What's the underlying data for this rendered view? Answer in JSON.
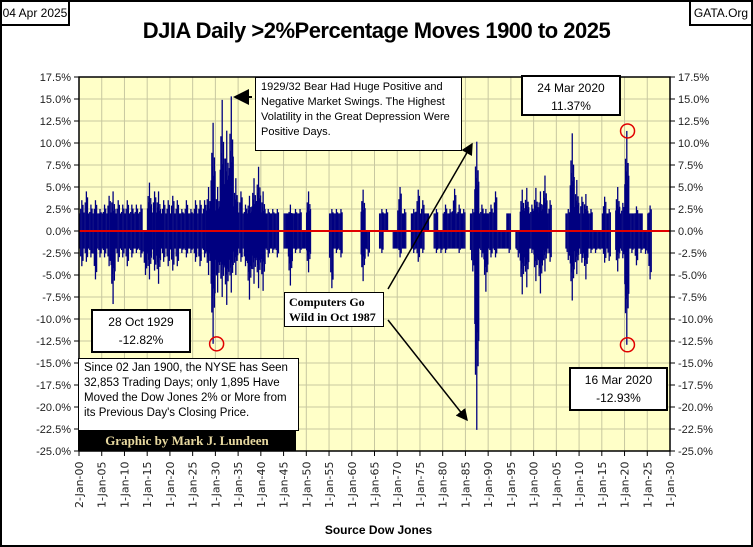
{
  "header": {
    "date": "04 Apr 2025",
    "site": "GATA.Org",
    "title": "DJIA Daily >2%Percentage Moves 1900 to 2025"
  },
  "footer": {
    "source": "Source Dow Jones",
    "credit": "Graphic by Mark J. Lundeen"
  },
  "annotations": {
    "bear_1929": "1929/32 Bear Had Huge Positive and Negative Market Swings.  The Highest Volatility in the Great Depression Were Positive Days.",
    "oct1929_date": "28 Oct 1929",
    "oct1929_value": "-12.82%",
    "computers": "Computers Go Wild in Oct 1987",
    "mar2020_up_date": "24 Mar 2020",
    "mar2020_up_value": "11.37%",
    "mar2020_down_date": "16 Mar 2020",
    "mar2020_down_value": "-12.93%",
    "summary": "Since 02 Jan 1900, the NYSE has Seen 32,853 Trading Days; only 1,895 Have Moved the Dow Jones 2% or More from its Previous Day's Closing Price."
  },
  "chart_data": {
    "type": "bar",
    "title": "DJIA Daily >2%Percentage Moves 1900 to 2025",
    "xlabel": "Source Dow Jones",
    "ylabel": "",
    "xlim": [
      1900,
      2030
    ],
    "ylim": [
      -25,
      17.5
    ],
    "grid": true,
    "y_ticks": [
      "17.5%",
      "15.0%",
      "12.5%",
      "10.0%",
      "7.5%",
      "5.0%",
      "2.5%",
      "0.0%",
      "-2.5%",
      "-5.0%",
      "-7.5%",
      "-10.0%",
      "-12.5%",
      "-15.0%",
      "-17.5%",
      "-20.0%",
      "-22.5%",
      "-25.0%"
    ],
    "x_ticks": [
      "2-Jan-00",
      "1-Jan-05",
      "1-Jan-10",
      "1-Jan-15",
      "1-Jan-20",
      "1-Jan-25",
      "1-Jan-30",
      "1-Jan-35",
      "1-Jan-40",
      "1-Jan-45",
      "1-Jan-50",
      "1-Jan-55",
      "1-Jan-60",
      "1-Jan-65",
      "1-Jan-70",
      "1-Jan-75",
      "1-Jan-80",
      "1-Jan-85",
      "1-Jan-90",
      "1-Jan-95",
      "1-Jan-00",
      "1-Jan-05",
      "1-Jan-10",
      "1-Jan-15",
      "1-Jan-20",
      "1-Jan-25",
      "1-Jan-30"
    ],
    "start_year": 1900,
    "yearly_max_gain_pct": [
      3.5,
      4.5,
      3,
      3.5,
      2.5,
      3,
      4,
      4.5,
      3.5,
      3,
      3.5,
      3,
      3,
      3,
      0,
      5.5,
      4.5,
      4.5,
      3.5,
      3.5,
      4,
      3.5,
      2.5,
      3.5,
      2.5,
      3.5,
      3.5,
      3.5,
      5,
      12.3,
      5,
      14.9,
      11.4,
      15.3,
      6,
      4.5,
      3,
      4,
      6,
      7.3,
      4.5,
      2.5,
      2.5,
      2.5,
      0,
      2,
      3,
      2.5,
      2.5,
      0,
      4.5,
      0,
      0,
      0,
      0,
      2.5,
      2.5,
      2.5,
      0,
      0,
      0,
      0,
      4.7,
      0,
      0,
      0,
      2.5,
      2.5,
      0,
      0,
      5,
      2.5,
      0,
      2.5,
      4.7,
      3.5,
      2,
      0,
      2.5,
      0,
      3,
      2.5,
      4.8,
      3,
      2.5,
      0,
      2.5,
      10.15,
      3,
      2.5,
      3,
      4.5,
      0,
      0,
      2,
      0,
      0,
      4.7,
      4.9,
      3,
      4.9,
      4.5,
      6.3,
      3.5,
      0,
      0,
      0,
      2.5,
      11.1,
      5.8,
      3.9,
      4.2,
      2.5,
      0,
      0,
      3.9,
      2.5,
      0,
      5,
      3.2,
      11.37,
      2,
      2.8,
      2,
      0,
      2.9
    ],
    "yearly_max_loss_pct": [
      -4,
      -3.5,
      -3,
      -5.5,
      -3,
      -3,
      -4,
      -8.3,
      -3.5,
      -3,
      -4,
      -3,
      -2.5,
      -3,
      -5,
      -5.5,
      -4.5,
      -6,
      -3.5,
      -4,
      -4.5,
      -4,
      -2.5,
      -3,
      -2.5,
      -3.5,
      -4,
      -3,
      -5,
      -12.82,
      -7,
      -7.5,
      -8.4,
      -7,
      -5,
      -3.5,
      -4,
      -7.8,
      -6,
      -6.5,
      -6.8,
      -3,
      -2.5,
      -3,
      0,
      -2,
      -6.2,
      -2.5,
      -2.5,
      -2,
      -4.7,
      0,
      0,
      0,
      0,
      -6.5,
      -2.5,
      -3,
      0,
      0,
      0,
      0,
      -5.7,
      -2.9,
      0,
      0,
      -2.5,
      0,
      0,
      -2,
      -3,
      -2,
      0,
      -2.5,
      -3.5,
      -2.5,
      0,
      0,
      -2.5,
      -2.5,
      -2.5,
      -2,
      -2,
      -2.5,
      -2,
      0,
      -4.6,
      -22.6,
      -3,
      -6.9,
      -3,
      -3,
      -2,
      -2,
      -2.5,
      0,
      -3,
      -7.2,
      -6.4,
      -2.5,
      -5.7,
      -7.1,
      -4.6,
      -3.5,
      0,
      0,
      0,
      -3.3,
      -7.9,
      -4.9,
      -3.6,
      -5.5,
      -2.5,
      -2.5,
      -2.1,
      -3.6,
      -3.4,
      0,
      -4.6,
      -3.1,
      -12.93,
      -2.5,
      -3.9,
      -2.5,
      -2.6,
      -5.5
    ],
    "colors": {
      "bars": "#000080",
      "zero_line": "#e00000",
      "plot_bg": "#ffffc8",
      "grid": "#c8c8a0",
      "highlight_circle": "#e00000"
    }
  }
}
